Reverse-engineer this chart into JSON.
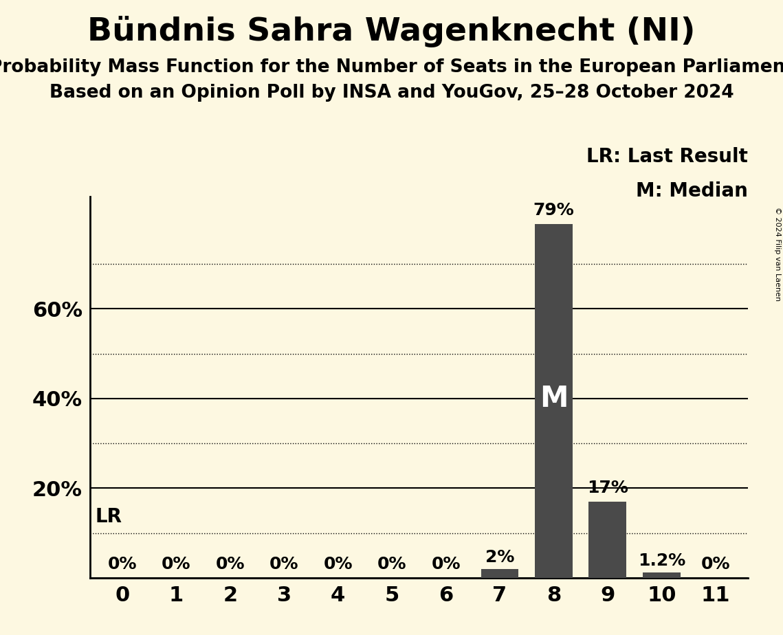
{
  "title": "Bündnis Sahra Wagenknecht (NI)",
  "subtitle1": "Probability Mass Function for the Number of Seats in the European Parliament",
  "subtitle2": "Based on an Opinion Poll by INSA and YouGov, 25–28 October 2024",
  "copyright": "© 2024 Filip van Laenen",
  "categories": [
    0,
    1,
    2,
    3,
    4,
    5,
    6,
    7,
    8,
    9,
    10,
    11
  ],
  "values": [
    0,
    0,
    0,
    0,
    0,
    0,
    0,
    2,
    79,
    17,
    1.2,
    0
  ],
  "bar_color": "#4a4a4a",
  "background_color": "#fdf8e1",
  "value_labels": [
    "0%",
    "0%",
    "0%",
    "0%",
    "0%",
    "0%",
    "0%",
    "2%",
    "79%",
    "17%",
    "1.2%",
    "0%"
  ],
  "ylim": [
    0,
    85
  ],
  "solid_gridlines": [
    20,
    40,
    60
  ],
  "dotted_gridlines": [
    10,
    30,
    50,
    70
  ],
  "lr_line": 10,
  "lr_label": "LR",
  "median_label": "M",
  "median_bar": 8,
  "legend_lr": "LR: Last Result",
  "legend_m": "M: Median",
  "title_fontsize": 34,
  "subtitle_fontsize": 19,
  "axis_tick_fontsize": 22,
  "bar_label_fontsize": 18,
  "legend_fontsize": 20,
  "median_fontsize": 30,
  "lr_fontsize": 20,
  "copyright_fontsize": 8
}
